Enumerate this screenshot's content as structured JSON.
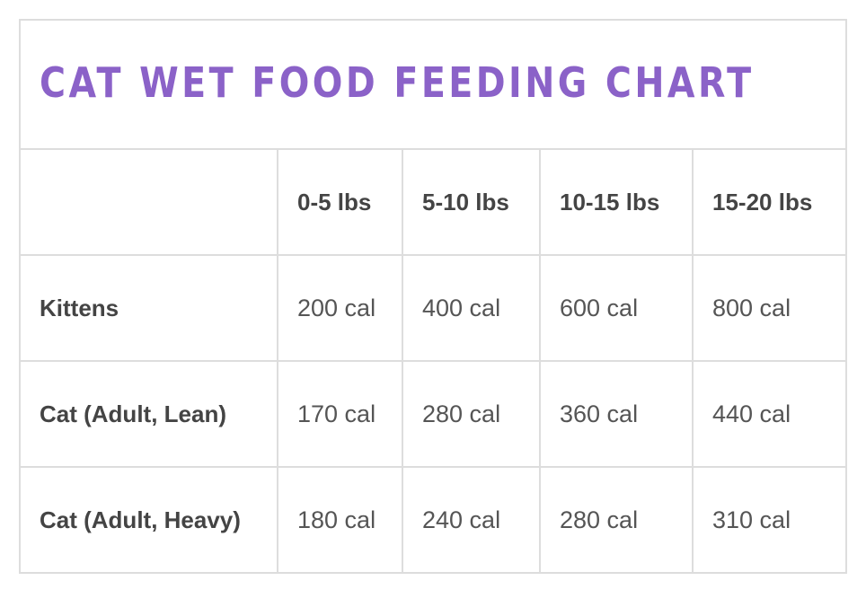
{
  "chart_data": {
    "type": "table",
    "title": "CAT WET FOOD FEEDING CHART",
    "columns": [
      "0-5 lbs",
      "5-10 lbs",
      "10-15 lbs",
      "15-20 lbs"
    ],
    "rows": [
      {
        "label": "Kittens",
        "values": [
          "200 cal",
          "400 cal",
          "600 cal",
          "800 cal"
        ]
      },
      {
        "label": "Cat (Adult, Lean)",
        "values": [
          "170 cal",
          "280 cal",
          "360 cal",
          "440 cal"
        ]
      },
      {
        "label": "Cat (Adult, Heavy)",
        "values": [
          "180 cal",
          "240 cal",
          "280 cal",
          "310 cal"
        ]
      }
    ]
  },
  "colors": {
    "title": "#8b62c8",
    "border": "#dddddd",
    "text": "#444444"
  }
}
